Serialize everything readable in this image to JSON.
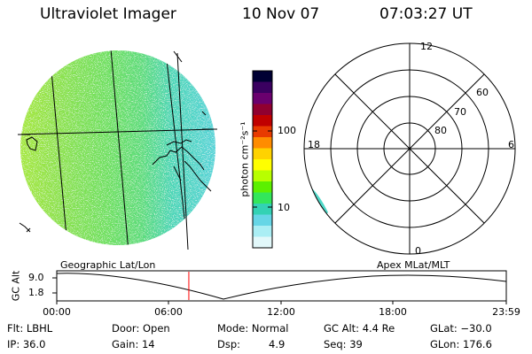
{
  "header": {
    "instrument": "Ultraviolet Imager",
    "date": "10 Nov 07",
    "time": "07:03:27 UT"
  },
  "colorbar": {
    "unit_label": "photon cm⁻²s⁻¹",
    "ticks": [
      "100",
      "10"
    ],
    "colors": [
      "#000033",
      "#3a0060",
      "#6a006e",
      "#900030",
      "#c00000",
      "#e83a00",
      "#ff8c00",
      "#ffd200",
      "#ffff00",
      "#b8ff00",
      "#5cf000",
      "#33e65a",
      "#33d2b4",
      "#66d6e6",
      "#aaeef4",
      "#e2f8fa"
    ]
  },
  "polar_plot": {
    "mlt_labels": {
      "top": "12",
      "left": "18",
      "right": "6",
      "bottom": "0"
    },
    "lat_labels": [
      "60",
      "70",
      "80"
    ]
  },
  "labels": {
    "geo_grid": "Geographic Lat/Lon",
    "apex_grid": "Apex  MLat/MLT"
  },
  "orbit": {
    "ylabel": "GC Alt",
    "yticks": [
      "9.0",
      "1.8"
    ],
    "xticks": [
      "00:00",
      "06:00",
      "12:00",
      "18:00",
      "23:59"
    ],
    "current_time_fraction": 0.2938
  },
  "info": {
    "flt": "Flt: LBHL",
    "ip": "IP: 36.0",
    "door": "Door: Open",
    "gain": "Gain: 14",
    "mode": "Mode: Normal",
    "dsp_label": "Dsp:",
    "dsp_value": "4.9",
    "gc_alt": "GC Alt: 4.4 Re",
    "seq": "Seq: 39",
    "glat": "GLat: −30.0",
    "glon": "GLon: 176.6"
  }
}
